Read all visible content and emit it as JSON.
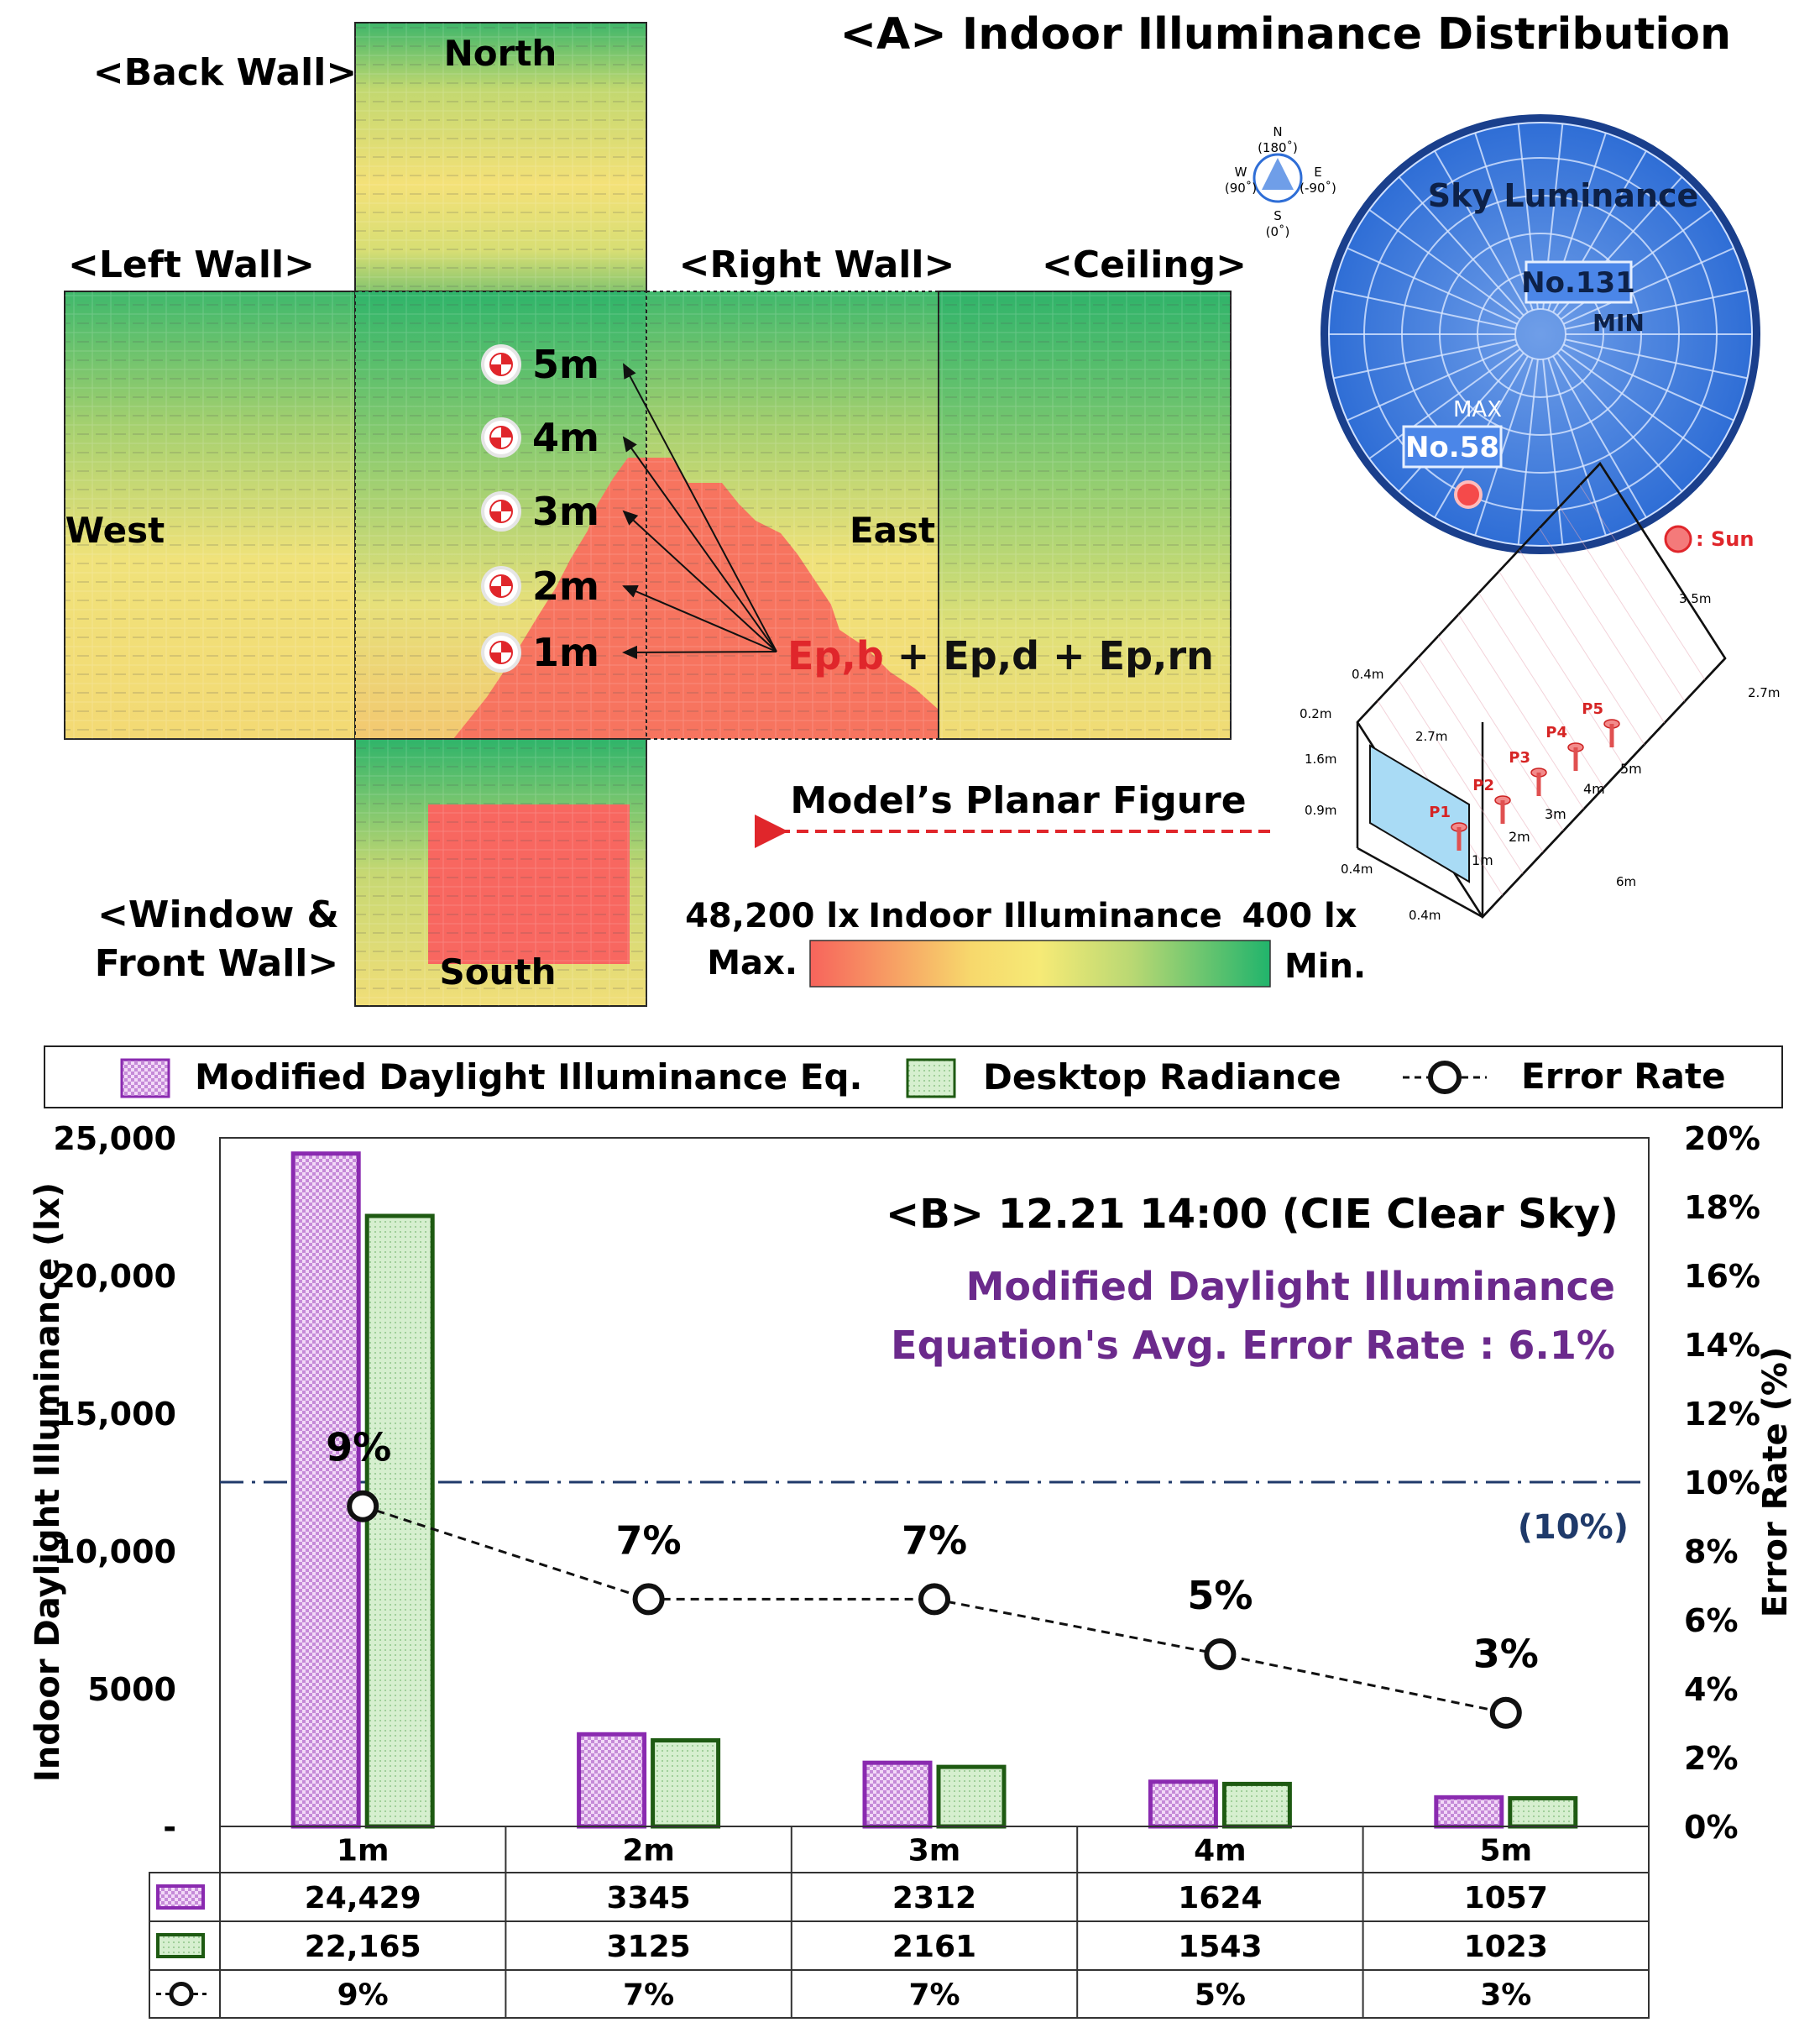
{
  "panel_a": {
    "title": "<A> Indoor Illuminance Distribution",
    "walls": {
      "back": "<Back Wall>",
      "left": "<Left Wall>",
      "right": "<Right Wall>",
      "ceiling": "<Ceiling>",
      "window_line1": "<Window &",
      "window_line2": "Front Wall>"
    },
    "directions": {
      "north": "North",
      "south": "South",
      "west": "West",
      "east": "East"
    },
    "points": [
      "1m",
      "2m",
      "3m",
      "4m",
      "5m"
    ],
    "equation": {
      "ep_b": "Ep,b",
      "rest": " + Ep,d + Ep,rn"
    },
    "planar_label": "Model’s Planar Figure",
    "colorbar": {
      "max_value": "48,200 lx",
      "max_word": "Max.",
      "title": "Indoor Illuminance",
      "min_value": "400 lx",
      "min_word": "Min.",
      "colors": [
        "#f7645c",
        "#f7d86c",
        "#f6ea76",
        "#b9d873",
        "#21b46c"
      ]
    },
    "sky": {
      "title": "Sky Luminance",
      "min_id": "No.131",
      "min_label": "MIN",
      "max_label": "MAX",
      "max_id": "No.58",
      "sun_label": ": Sun"
    },
    "compass": {
      "n": "N",
      "n_deg": "(180˚)",
      "w": "W",
      "w_deg": "(90˚)",
      "e": "E",
      "e_deg": "(-90˚)",
      "s": "S",
      "s_deg": "(0˚)"
    },
    "model": {
      "dims": [
        "3.5m",
        "2.7m",
        "2.7m",
        "0.4m",
        "0.2m",
        "1.6m",
        "0.9m",
        "0.4m",
        "0.4m",
        "6m"
      ],
      "points": [
        "P1",
        "P2",
        "P3",
        "P4",
        "P5"
      ],
      "distances": [
        "1m",
        "2m",
        "3m",
        "4m",
        "5m"
      ]
    }
  },
  "legend": {
    "modified": "Modified Daylight Illuminance Eq.",
    "radiance": "Desktop Radiance",
    "error": "Error Rate"
  },
  "chart_data": {
    "type": "bar",
    "title": "<B> 12.21 14:00 (CIE Clear Sky)",
    "subtitle_line1": "Modified Daylight Illuminance",
    "subtitle_line2": "Equation's Avg. Error Rate : 6.1%",
    "ylabel": "Indoor Daylight Illuminance (lx)",
    "y2label": "Error Rate (%)",
    "ylim": [
      0,
      25000
    ],
    "y2lim": [
      0,
      20
    ],
    "y_ticks": [
      "-",
      "5000",
      "10,000",
      "15,000",
      "20,000",
      "25,000"
    ],
    "y2_ticks": [
      "0%",
      "2%",
      "4%",
      "6%",
      "8%",
      "10%",
      "12%",
      "14%",
      "16%",
      "18%",
      "20%"
    ],
    "categories": [
      "1m",
      "2m",
      "3m",
      "4m",
      "5m"
    ],
    "series": [
      {
        "name": "Modified Daylight Illuminance Eq.",
        "values": [
          24429,
          3345,
          2312,
          1624,
          1057
        ],
        "color": "#9b3fc0"
      },
      {
        "name": "Desktop Radiance",
        "values": [
          22165,
          3125,
          2161,
          1543,
          1023
        ],
        "color": "#2a6b1a"
      },
      {
        "name": "Error Rate",
        "axis": "right",
        "values": [
          9.3,
          6.6,
          6.6,
          5.0,
          3.3
        ]
      }
    ],
    "error_labels": [
      "9%",
      "7%",
      "7%",
      "5%",
      "3%"
    ],
    "reference_line": {
      "value": 10,
      "label": "(10%)"
    },
    "table": {
      "row1": [
        "24,429",
        "3345",
        "2312",
        "1624",
        "1057"
      ],
      "row2": [
        "22,165",
        "3125",
        "2161",
        "1543",
        "1023"
      ],
      "row3": [
        "9%",
        "7%",
        "7%",
        "5%",
        "3%"
      ]
    }
  }
}
